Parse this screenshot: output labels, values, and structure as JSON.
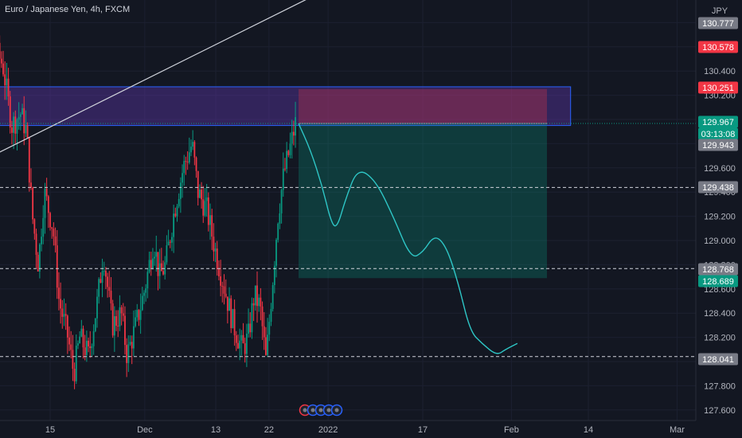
{
  "header": {
    "title": "Euro / Japanese Yen, 4h, FXCM"
  },
  "chart_data": {
    "type": "candlestick",
    "title": "Euro / Japanese Yen, 4h, FXCM",
    "currency_label": "JPY",
    "ylim": [
      127.5,
      130.9
    ],
    "y_ticks": [
      127.6,
      127.8,
      128.0,
      128.2,
      128.4,
      128.6,
      128.8,
      129.0,
      129.2,
      129.4,
      129.6,
      129.8,
      130.0,
      130.2,
      130.4,
      130.6,
      130.8
    ],
    "y_tick_labels": [
      "127.600",
      "127.800",
      "128.000",
      "128.200",
      "128.400",
      "128.600",
      "128.800",
      "129.000",
      "129.200",
      "129.400",
      "129.600",
      "129.800",
      "130.000",
      "130.200",
      "130.400",
      "130.600",
      "130.800"
    ],
    "x_ticks": [
      {
        "label": "15",
        "day": 15
      },
      {
        "label": "Dec",
        "day": 31
      },
      {
        "label": "13",
        "day": 43
      },
      {
        "label": "22",
        "day": 52
      },
      {
        "label": "2022",
        "day": 62
      },
      {
        "label": "17",
        "day": 78
      },
      {
        "label": "Feb",
        "day": 93
      },
      {
        "label": "14",
        "day": 106
      },
      {
        "label": "Mar",
        "day": 121
      }
    ],
    "candle_day_range": [
      0,
      56.5
    ],
    "candles_per_day": 3.4,
    "price_path": [
      [
        0,
        130.9
      ],
      [
        4,
        130.75
      ],
      [
        7,
        130.45
      ],
      [
        8.5,
        129.95
      ],
      [
        10,
        130.05
      ],
      [
        11,
        129.9
      ],
      [
        12,
        129.2
      ],
      [
        13,
        128.8
      ],
      [
        14,
        129.4
      ],
      [
        15.5,
        129.1
      ],
      [
        16.5,
        128.5
      ],
      [
        18,
        128.2
      ],
      [
        19,
        127.9
      ],
      [
        20,
        128.2
      ],
      [
        21.5,
        128.05
      ],
      [
        23,
        128.5
      ],
      [
        24,
        128.9
      ],
      [
        25.5,
        128.3
      ],
      [
        27,
        128.4
      ],
      [
        28,
        128.05
      ],
      [
        29.5,
        128.3
      ],
      [
        31,
        128.6
      ],
      [
        32.5,
        129.0
      ],
      [
        33.5,
        128.7
      ],
      [
        34.5,
        128.8
      ],
      [
        36,
        129.25
      ],
      [
        37.5,
        129.6
      ],
      [
        39,
        129.8
      ],
      [
        40,
        129.4
      ],
      [
        41.5,
        129.25
      ],
      [
        43,
        128.9
      ],
      [
        44.5,
        128.6
      ],
      [
        46,
        128.3
      ],
      [
        47.5,
        128.1
      ],
      [
        48.5,
        128.2
      ],
      [
        49.5,
        128.55
      ],
      [
        50.5,
        128.45
      ],
      [
        51.5,
        128.0
      ],
      [
        52.5,
        128.6
      ],
      [
        53.5,
        129.2
      ],
      [
        54.5,
        129.55
      ],
      [
        55.5,
        129.75
      ],
      [
        56.5,
        129.97
      ]
    ],
    "price_levels": [
      {
        "label": "130.777",
        "value": 130.777,
        "color": "#787b86"
      },
      {
        "label": "130.578",
        "value": 130.578,
        "color": "#f23645"
      },
      {
        "label": "130.251",
        "value": 130.251,
        "color": "#f23645"
      },
      {
        "label": "129.967",
        "value": 129.967,
        "color": "#089981"
      },
      {
        "label": "03:13:08",
        "value": 129.967,
        "color": "#089981"
      },
      {
        "label": "129.943",
        "value": 129.943,
        "color": "#787b86"
      },
      {
        "label": "129.438",
        "value": 129.438,
        "color": "#787b86",
        "dashed": true
      },
      {
        "label": "128.768",
        "value": 128.768,
        "color": "#787b86",
        "dashed": true
      },
      {
        "label": "128.689",
        "value": 128.689,
        "color": "#089981"
      },
      {
        "label": "128.041",
        "value": 128.041,
        "color": "#787b86",
        "dashed": true
      }
    ],
    "resistance_zone": {
      "x_range": [
        -0.5,
        103
      ],
      "y_range": [
        129.95,
        130.27
      ]
    },
    "short_position": {
      "x_range": [
        57,
        99
      ],
      "entry": 129.967,
      "stop": 130.251,
      "target": 128.689
    },
    "trendline": {
      "from": [
        -3,
        129.5
      ],
      "to": [
        71,
        131.3
      ]
    },
    "forecast_path": [
      [
        57,
        129.967
      ],
      [
        59,
        129.75
      ],
      [
        61,
        129.45
      ],
      [
        62.5,
        129.15
      ],
      [
        63.5,
        129.1
      ],
      [
        65,
        129.35
      ],
      [
        67,
        129.6
      ],
      [
        70,
        129.5
      ],
      [
        73,
        129.2
      ],
      [
        76,
        128.85
      ],
      [
        78,
        128.9
      ],
      [
        80,
        129.05
      ],
      [
        82,
        128.95
      ],
      [
        84,
        128.65
      ],
      [
        86,
        128.25
      ],
      [
        88,
        128.15
      ],
      [
        90.5,
        128.05
      ],
      [
        92,
        128.1
      ],
      [
        94,
        128.15
      ]
    ],
    "colors": {
      "up": "#089981",
      "down": "#f23645",
      "trendline": "#d1d4dc",
      "forecast": "#2ec6c6"
    }
  }
}
